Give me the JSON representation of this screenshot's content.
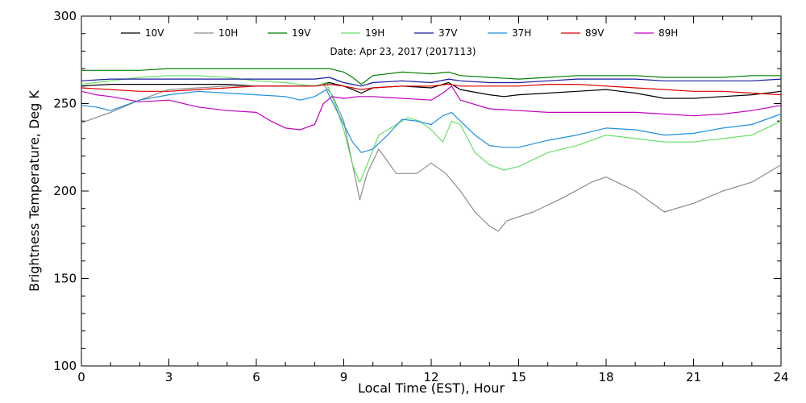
{
  "chart_data": {
    "type": "line",
    "subtitle": "Date: Apr 23, 2017 (2017113)",
    "xlabel": "Local Time (EST), Hour",
    "ylabel": "Brightness Temperature, Deg K",
    "xlim": [
      0,
      24
    ],
    "ylim": [
      100,
      300
    ],
    "xticks": [
      0,
      3,
      6,
      9,
      12,
      15,
      18,
      21,
      24
    ],
    "yticks": [
      100,
      150,
      200,
      250,
      300
    ],
    "legend_position": "top",
    "grid": false,
    "series": [
      {
        "name": "10V",
        "color": "#000000",
        "x": [
          0,
          1,
          2,
          3,
          4,
          5,
          6,
          7,
          8,
          8.5,
          9,
          9.3,
          9.6,
          10,
          11,
          12,
          12.6,
          13,
          14,
          14.5,
          15,
          16,
          17,
          18,
          19,
          20,
          21,
          22,
          23,
          24
        ],
        "y": [
          260,
          261,
          261,
          261,
          261,
          261,
          260,
          260,
          260,
          262,
          260,
          258,
          256,
          259,
          260,
          259,
          262,
          258,
          255,
          254,
          255,
          256,
          257,
          258,
          256,
          253,
          253,
          254,
          255,
          257
        ]
      },
      {
        "name": "10H",
        "color": "#8c8c8c",
        "x": [
          0,
          1,
          2,
          3,
          4,
          5,
          6,
          7,
          8,
          8.3,
          8.6,
          9,
          9.3,
          9.55,
          9.8,
          10.2,
          10.8,
          11.5,
          12,
          12.5,
          13,
          13.5,
          14,
          14.3,
          14.6,
          15.5,
          16.5,
          17.5,
          18,
          19,
          20,
          21,
          22,
          23,
          24
        ],
        "y": [
          239,
          245,
          252,
          258,
          259,
          260,
          260,
          260,
          260,
          261,
          255,
          240,
          215,
          195,
          210,
          224,
          210,
          210,
          216,
          210,
          200,
          188,
          180,
          177,
          183,
          188,
          196,
          205,
          208,
          200,
          188,
          193,
          200,
          205,
          215
        ]
      },
      {
        "name": "19V",
        "color": "#008000",
        "x": [
          0,
          1,
          2,
          3,
          4,
          5,
          6,
          7,
          8,
          8.5,
          9,
          9.3,
          9.6,
          10,
          11,
          12,
          12.6,
          13,
          14,
          15,
          16,
          17,
          18,
          19,
          20,
          21,
          22,
          23,
          24
        ],
        "y": [
          269,
          269,
          269,
          270,
          270,
          270,
          270,
          270,
          270,
          270,
          268,
          265,
          261,
          266,
          268,
          267,
          268,
          266,
          265,
          264,
          265,
          266,
          266,
          266,
          265,
          265,
          265,
          266,
          266
        ]
      },
      {
        "name": "19H",
        "color": "#66e066",
        "x": [
          0,
          1,
          2,
          3,
          4,
          5,
          6,
          7,
          8,
          8.4,
          8.7,
          9,
          9.3,
          9.55,
          9.8,
          10.2,
          10.8,
          11.2,
          11.6,
          12,
          12.4,
          12.7,
          13,
          13.5,
          14,
          14.5,
          15,
          16,
          17,
          18,
          19,
          20,
          21,
          22,
          23,
          24
        ],
        "y": [
          261,
          263,
          265,
          266,
          266,
          265,
          263,
          262,
          260,
          262,
          250,
          235,
          215,
          205,
          215,
          232,
          238,
          242,
          240,
          235,
          228,
          240,
          238,
          222,
          215,
          212,
          214,
          222,
          226,
          232,
          230,
          228,
          228,
          230,
          232,
          240
        ]
      },
      {
        "name": "37V",
        "color": "#1a1aa0",
        "x": [
          0,
          1,
          2,
          3,
          4,
          5,
          6,
          7,
          8,
          8.5,
          9,
          9.3,
          9.6,
          10,
          11,
          12,
          12.6,
          13,
          14,
          15,
          16,
          17,
          18,
          19,
          20,
          21,
          22,
          23,
          24
        ],
        "y": [
          263,
          264,
          264,
          264,
          264,
          264,
          264,
          264,
          264,
          265,
          262,
          261,
          260,
          262,
          263,
          262,
          264,
          263,
          262,
          262,
          263,
          264,
          264,
          264,
          263,
          263,
          263,
          263,
          264
        ]
      },
      {
        "name": "37H",
        "color": "#1e8fe0",
        "x": [
          0,
          0.5,
          1,
          2,
          3,
          4,
          5,
          6,
          7,
          7.5,
          8,
          8.4,
          8.7,
          9,
          9.3,
          9.6,
          10,
          10.5,
          11,
          11.5,
          12,
          12.4,
          12.7,
          13,
          13.5,
          14,
          14.5,
          15,
          16,
          17,
          18,
          19,
          20,
          21,
          22,
          23,
          24
        ],
        "y": [
          249,
          248,
          246,
          252,
          255,
          257,
          256,
          255,
          254,
          252,
          254,
          258,
          248,
          238,
          228,
          222,
          224,
          232,
          241,
          240,
          238,
          243,
          245,
          240,
          232,
          226,
          225,
          225,
          229,
          232,
          236,
          235,
          232,
          233,
          236,
          238,
          244
        ]
      },
      {
        "name": "89V",
        "color": "#e00000",
        "x": [
          0,
          1,
          2,
          3,
          4,
          5,
          6,
          7,
          8,
          8.5,
          9,
          9.3,
          9.6,
          10,
          11,
          12,
          12.6,
          13,
          14,
          15,
          16,
          17,
          18,
          19,
          20,
          21,
          22,
          23,
          24
        ],
        "y": [
          259,
          258,
          257,
          257,
          258,
          259,
          260,
          260,
          260,
          261,
          260,
          259,
          258,
          259,
          260,
          260,
          261,
          260,
          260,
          260,
          261,
          261,
          260,
          259,
          258,
          257,
          257,
          256,
          255
        ]
      },
      {
        "name": "89H",
        "color": "#c000c0",
        "x": [
          0,
          0.5,
          1,
          2,
          3,
          4,
          5,
          6,
          6.5,
          7,
          7.5,
          8,
          8.3,
          8.6,
          9,
          9.5,
          10,
          11,
          12,
          12.4,
          12.7,
          13,
          14,
          15,
          16,
          17,
          18,
          19,
          20,
          21,
          22,
          23,
          24
        ],
        "y": [
          257,
          255,
          254,
          251,
          252,
          248,
          246,
          245,
          240,
          236,
          235,
          238,
          250,
          254,
          253,
          254,
          254,
          253,
          252,
          256,
          260,
          252,
          247,
          246,
          245,
          245,
          245,
          245,
          244,
          243,
          244,
          246,
          249
        ]
      }
    ]
  }
}
